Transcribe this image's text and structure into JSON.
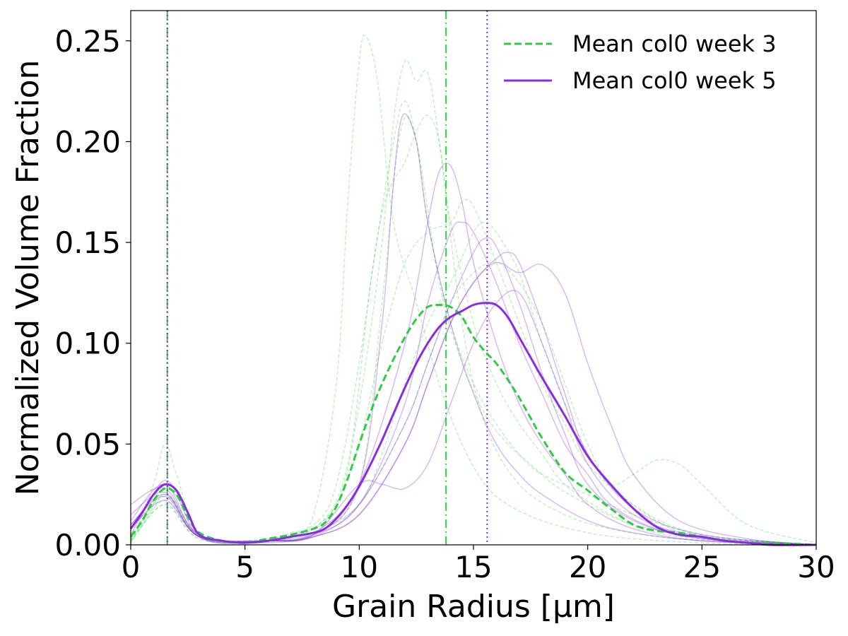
{
  "chart_data": {
    "type": "line",
    "xlabel": "Grain Radius [μm]",
    "ylabel": "Normalized Volume Fraction",
    "xlim": [
      0,
      30
    ],
    "ylim": [
      0,
      0.265
    ],
    "x_ticks": [
      "0",
      "5",
      "10",
      "15",
      "20",
      "25",
      "30"
    ],
    "y_ticks": [
      "0.00",
      "0.05",
      "0.10",
      "0.15",
      "0.20",
      "0.25"
    ],
    "grid": false,
    "legend_placement": "top-right",
    "colors": {
      "week3": "#2ecc40",
      "week5": "#8a2be2"
    },
    "vlines": [
      {
        "x": 1.6,
        "series": "week3",
        "style": "dashdot"
      },
      {
        "x": 1.6,
        "series": "week5",
        "style": "dotted"
      },
      {
        "x": 13.8,
        "series": "week3",
        "style": "dashdot"
      },
      {
        "x": 15.6,
        "series": "week5",
        "style": "dotted"
      }
    ],
    "series": [
      {
        "name": "Mean col0 week 3",
        "key": "week3",
        "style": "dashed",
        "x": [
          0,
          0.5,
          1,
          1.5,
          2,
          2.5,
          3,
          4,
          5,
          6,
          7,
          8,
          8.5,
          9,
          9.5,
          10,
          10.5,
          11,
          11.5,
          12,
          12.5,
          13,
          13.5,
          14,
          14.5,
          15,
          15.5,
          16,
          16.5,
          17,
          17.5,
          18,
          19,
          20,
          21,
          22,
          23,
          24,
          25,
          26,
          27,
          28,
          30
        ],
        "values": [
          0.004,
          0.012,
          0.022,
          0.028,
          0.025,
          0.014,
          0.006,
          0.002,
          0.001,
          0.003,
          0.005,
          0.008,
          0.011,
          0.019,
          0.033,
          0.05,
          0.066,
          0.08,
          0.092,
          0.103,
          0.112,
          0.118,
          0.119,
          0.118,
          0.113,
          0.103,
          0.096,
          0.09,
          0.082,
          0.073,
          0.063,
          0.053,
          0.036,
          0.027,
          0.018,
          0.01,
          0.007,
          0.006,
          0.004,
          0.002,
          0.001,
          0.001,
          0.0
        ]
      },
      {
        "name": "Mean col0 week 5",
        "key": "week5",
        "style": "solid",
        "x": [
          0,
          0.5,
          1,
          1.5,
          2,
          2.5,
          3,
          4,
          5,
          6,
          7,
          8,
          8.5,
          9,
          9.5,
          10,
          10.5,
          11,
          11.5,
          12,
          12.5,
          13,
          13.5,
          14,
          14.5,
          15,
          15.5,
          16,
          16.5,
          17,
          17.5,
          18,
          19,
          20,
          21,
          22,
          23,
          24,
          25,
          26,
          27,
          28,
          30
        ],
        "values": [
          0.008,
          0.016,
          0.025,
          0.03,
          0.027,
          0.016,
          0.005,
          0.002,
          0.001,
          0.002,
          0.004,
          0.006,
          0.008,
          0.013,
          0.02,
          0.029,
          0.04,
          0.052,
          0.065,
          0.078,
          0.09,
          0.1,
          0.108,
          0.113,
          0.116,
          0.119,
          0.12,
          0.119,
          0.113,
          0.103,
          0.093,
          0.083,
          0.064,
          0.044,
          0.03,
          0.018,
          0.009,
          0.005,
          0.004,
          0.002,
          0.001,
          0.0,
          0.0
        ]
      }
    ],
    "background_series": [
      {
        "key": "week3",
        "x": [
          0,
          1,
          1.5,
          2,
          3,
          5,
          7,
          8,
          9,
          9.5,
          10,
          10.3,
          10.8,
          11.5,
          12.5,
          13.5,
          14.5,
          15.5,
          16.5,
          18,
          20,
          22,
          25,
          30
        ],
        "values": [
          0.0,
          0.03,
          0.05,
          0.035,
          0.005,
          0.001,
          0.006,
          0.015,
          0.08,
          0.17,
          0.24,
          0.252,
          0.23,
          0.16,
          0.12,
          0.08,
          0.05,
          0.03,
          0.02,
          0.012,
          0.006,
          0.003,
          0.001,
          0.0
        ]
      },
      {
        "key": "week3",
        "x": [
          0,
          1,
          1.5,
          2,
          3,
          5,
          7,
          9,
          10,
          11,
          11.5,
          12,
          12.5,
          13,
          13.5,
          14.5,
          15.5,
          17,
          19,
          21,
          24,
          30
        ],
        "values": [
          0.002,
          0.02,
          0.03,
          0.024,
          0.004,
          0.001,
          0.004,
          0.02,
          0.07,
          0.15,
          0.21,
          0.24,
          0.23,
          0.234,
          0.2,
          0.11,
          0.06,
          0.03,
          0.015,
          0.008,
          0.003,
          0.0
        ]
      },
      {
        "key": "week3",
        "x": [
          0,
          1,
          1.5,
          2,
          3,
          5,
          8,
          9.5,
          10.5,
          11.5,
          12,
          12.5,
          13,
          14,
          15,
          16,
          17,
          18,
          20,
          22,
          25,
          30
        ],
        "values": [
          0.001,
          0.018,
          0.026,
          0.02,
          0.004,
          0.001,
          0.008,
          0.04,
          0.13,
          0.2,
          0.22,
          0.2,
          0.16,
          0.11,
          0.08,
          0.06,
          0.045,
          0.035,
          0.025,
          0.015,
          0.005,
          0.0
        ]
      },
      {
        "key": "week3",
        "x": [
          0,
          1.5,
          3,
          6,
          8,
          9,
          10,
          11,
          12,
          12.5,
          13,
          13.5,
          14,
          15,
          16,
          17,
          18,
          19,
          21,
          23,
          26,
          30
        ],
        "values": [
          0.004,
          0.024,
          0.004,
          0.003,
          0.01,
          0.03,
          0.09,
          0.165,
          0.19,
          0.205,
          0.213,
          0.2,
          0.16,
          0.11,
          0.08,
          0.06,
          0.045,
          0.03,
          0.015,
          0.006,
          0.002,
          0.0
        ]
      },
      {
        "key": "week3",
        "x": [
          0,
          1.5,
          3,
          6,
          8,
          9,
          10,
          11,
          12,
          13,
          14,
          14.5,
          15,
          16,
          17,
          18,
          19,
          20,
          22,
          24,
          27,
          30
        ],
        "values": [
          0.002,
          0.02,
          0.003,
          0.002,
          0.008,
          0.02,
          0.05,
          0.1,
          0.14,
          0.155,
          0.16,
          0.17,
          0.168,
          0.14,
          0.11,
          0.08,
          0.06,
          0.04,
          0.02,
          0.008,
          0.002,
          0.0
        ]
      },
      {
        "key": "week3",
        "x": [
          0,
          1.5,
          3,
          6,
          8,
          10,
          11,
          12,
          13,
          14,
          15,
          15.5,
          16,
          17,
          18,
          19,
          20,
          21,
          22,
          23,
          24,
          25,
          27,
          30
        ],
        "values": [
          0.003,
          0.022,
          0.004,
          0.002,
          0.006,
          0.02,
          0.045,
          0.08,
          0.11,
          0.13,
          0.155,
          0.16,
          0.155,
          0.135,
          0.1,
          0.07,
          0.045,
          0.03,
          0.035,
          0.042,
          0.04,
          0.03,
          0.01,
          0.001
        ]
      },
      {
        "key": "week3",
        "x": [
          0,
          1.5,
          3,
          6,
          8,
          10,
          11,
          11.8,
          12.5,
          13.5,
          14.5,
          15.5,
          16.5,
          17.5,
          18.5,
          20,
          22,
          25,
          30
        ],
        "values": [
          0.003,
          0.025,
          0.004,
          0.002,
          0.005,
          0.03,
          0.12,
          0.205,
          0.2,
          0.13,
          0.09,
          0.065,
          0.05,
          0.04,
          0.03,
          0.02,
          0.01,
          0.004,
          0.0
        ]
      },
      {
        "key": "week3",
        "x": [
          0,
          1.5,
          3,
          6,
          8,
          10,
          12,
          13,
          14,
          15,
          16,
          17,
          18,
          19,
          20,
          21,
          23,
          25,
          30
        ],
        "values": [
          0.002,
          0.02,
          0.003,
          0.002,
          0.006,
          0.02,
          0.06,
          0.09,
          0.12,
          0.135,
          0.14,
          0.13,
          0.11,
          0.08,
          0.05,
          0.03,
          0.012,
          0.004,
          0.0
        ]
      },
      {
        "key": "week5",
        "x": [
          0,
          1,
          1.5,
          2,
          3,
          5,
          8,
          10,
          11,
          11.5,
          11.9,
          12.5,
          13,
          14,
          15,
          16,
          17,
          18,
          20,
          22,
          25,
          30
        ],
        "values": [
          0.005,
          0.025,
          0.032,
          0.026,
          0.004,
          0.001,
          0.005,
          0.03,
          0.11,
          0.18,
          0.213,
          0.2,
          0.16,
          0.11,
          0.075,
          0.05,
          0.035,
          0.025,
          0.012,
          0.006,
          0.002,
          0.0
        ]
      },
      {
        "key": "week5",
        "x": [
          0,
          1.5,
          3,
          6,
          8,
          10,
          12,
          13,
          13.5,
          14,
          14.5,
          15,
          16,
          17,
          18,
          19,
          20,
          22,
          25,
          30
        ],
        "values": [
          0.02,
          0.028,
          0.005,
          0.002,
          0.006,
          0.03,
          0.1,
          0.16,
          0.185,
          0.188,
          0.17,
          0.14,
          0.1,
          0.07,
          0.05,
          0.035,
          0.02,
          0.008,
          0.002,
          0.0
        ]
      },
      {
        "key": "week5",
        "x": [
          0,
          1.5,
          3,
          6,
          8,
          10,
          12,
          13,
          14,
          15,
          16,
          17,
          18,
          19,
          20,
          21,
          22,
          24,
          27,
          30
        ],
        "values": [
          0.01,
          0.025,
          0.004,
          0.002,
          0.004,
          0.015,
          0.05,
          0.08,
          0.11,
          0.13,
          0.14,
          0.135,
          0.139,
          0.125,
          0.09,
          0.06,
          0.035,
          0.012,
          0.003,
          0.0
        ]
      },
      {
        "key": "week5",
        "x": [
          0,
          1.5,
          3,
          6,
          8,
          10,
          12,
          13,
          14,
          15,
          15.5,
          16,
          17,
          18,
          19,
          20,
          22,
          25,
          30
        ],
        "values": [
          0.012,
          0.03,
          0.004,
          0.002,
          0.004,
          0.02,
          0.06,
          0.09,
          0.12,
          0.145,
          0.152,
          0.148,
          0.12,
          0.085,
          0.055,
          0.03,
          0.012,
          0.003,
          0.0
        ]
      },
      {
        "key": "week5",
        "x": [
          0,
          1.5,
          3,
          6,
          8,
          10,
          12,
          13,
          14,
          15,
          16,
          16.5,
          17,
          18,
          19,
          20,
          22,
          25,
          30
        ],
        "values": [
          0.015,
          0.026,
          0.004,
          0.002,
          0.004,
          0.015,
          0.05,
          0.08,
          0.11,
          0.13,
          0.142,
          0.145,
          0.14,
          0.11,
          0.075,
          0.045,
          0.018,
          0.005,
          0.0
        ]
      },
      {
        "key": "week5",
        "x": [
          0,
          1.5,
          3,
          6,
          8,
          10,
          11,
          12,
          13,
          14,
          15,
          16,
          17,
          18,
          19,
          20,
          22,
          25,
          30
        ],
        "values": [
          0.01,
          0.024,
          0.004,
          0.002,
          0.005,
          0.03,
          0.03,
          0.028,
          0.04,
          0.07,
          0.1,
          0.12,
          0.125,
          0.1,
          0.07,
          0.04,
          0.015,
          0.004,
          0.0
        ]
      },
      {
        "key": "week5",
        "x": [
          0,
          1.5,
          3,
          6,
          8,
          10,
          12,
          13,
          14,
          14.5,
          15,
          16,
          17,
          18,
          19,
          20,
          21,
          23,
          26,
          30
        ],
        "values": [
          0.008,
          0.022,
          0.004,
          0.002,
          0.005,
          0.02,
          0.07,
          0.12,
          0.155,
          0.16,
          0.155,
          0.13,
          0.1,
          0.075,
          0.05,
          0.035,
          0.02,
          0.008,
          0.002,
          0.0
        ]
      }
    ]
  }
}
